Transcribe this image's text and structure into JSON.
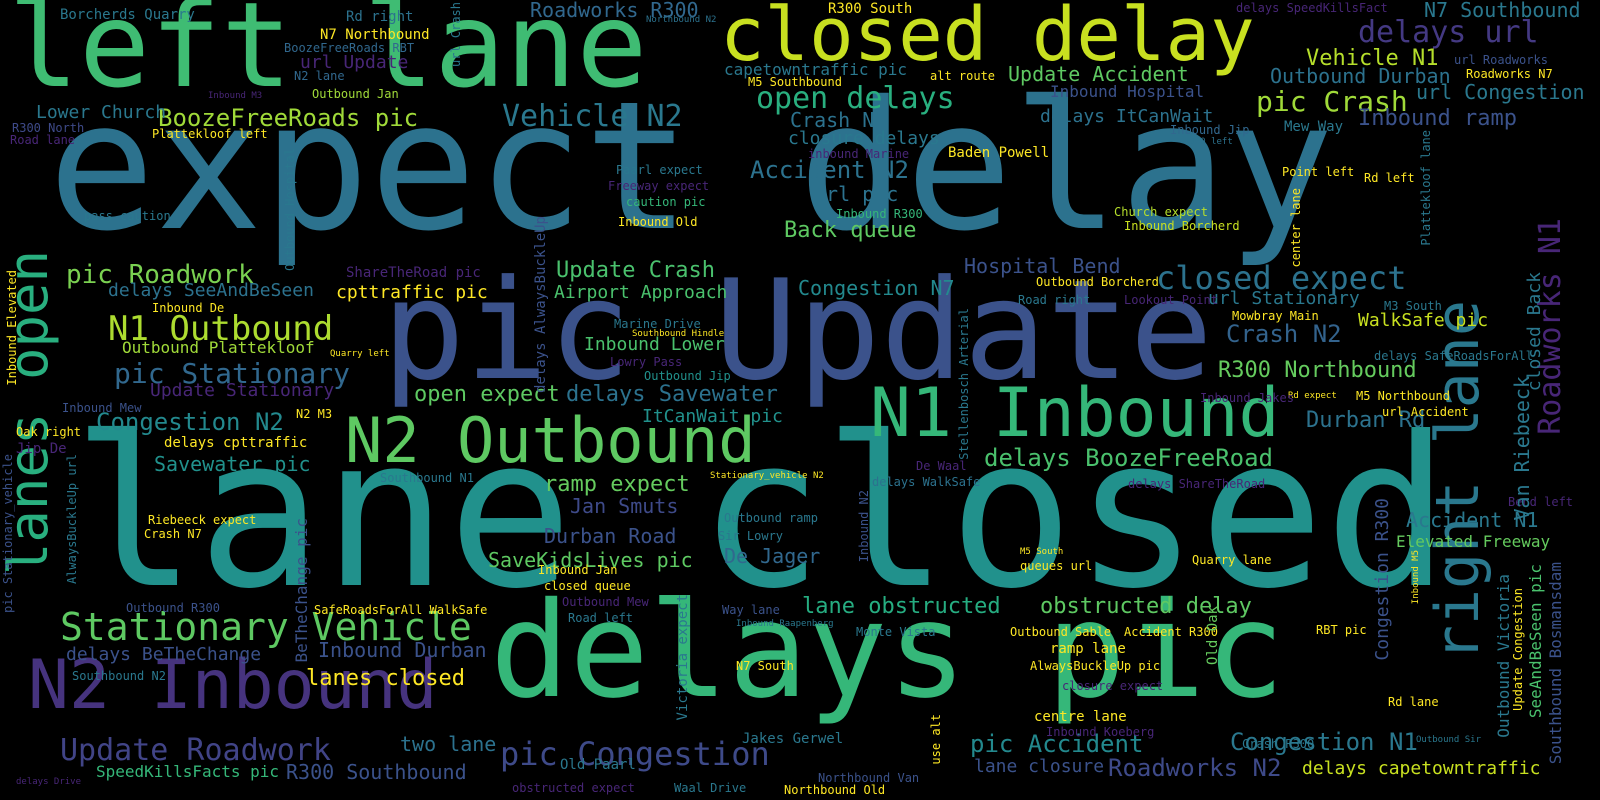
{
  "palette": {
    "background": "#000000",
    "colormap": "viridis"
  },
  "words": {
    "expect_delay": "expect delay",
    "lane_closed": "lane closed",
    "pic_update": "pic Update",
    "delays_pic": "delays pic",
    "left_lane": "left lane",
    "closed_delay": "closed delay",
    "n1_inbound": "N1 Inbound",
    "n2_outbound": "N2 Outbound",
    "n2_inbound": "N2 Inbound",
    "right_lane": "right lane",
    "lanes_open": "lanes open",
    "stationary_vehicle": "Stationary Vehicle",
    "n1_outbound": "N1 Outbound",
    "closed_expect": "closed expect",
    "roadworks_n1": "Roadworks N1",
    "pic_congestion": "pic Congestion",
    "update_roadwork": "Update Roadwork",
    "delays_url": "delays url",
    "open_delays": "open delays",
    "pic_crash": "pic Crash",
    "vehicle_n2": "Vehicle N2",
    "boozefreeroads_pic": "BoozeFreeRoads pic",
    "pic_roadwork": "pic Roadwork",
    "pic_stationary": "pic Stationary",
    "congestion_n2": "Congestion N2",
    "update_crash": "Update Crash",
    "accident_n2": "Accident N2",
    "back_queue": "Back queue",
    "delays_boozefreeroad": "delays BoozeFreeRoad",
    "r300_northbound": "R300 Northbound",
    "crash_n2": "Crash N2",
    "vehicle_n1": "Vehicle N1",
    "update_accident": "Update Accident",
    "outbound_durban": "Outbound Durban",
    "roadworks_r300": "Roadworks R300",
    "r300_south": "R300 South",
    "n7_southbound": "N7 Southbound",
    "url_congestion": "url Congestion",
    "inbound_ramp": "Inbound ramp",
    "congestion_n1": "Congestion N1",
    "roadworks_n2": "Roadworks N2",
    "pic_accident": "pic Accident",
    "lane_obstructed": "lane obstructed",
    "obstructed_delay": "obstructed delay",
    "delays_capetowntraffic": "delays capetowntraffic",
    "durban_rd": "Durban Rd",
    "accident_n1": "Accident N1",
    "elevated_freeway": "Elevated Freeway",
    "lanes_closed": "lanes closed",
    "two_lane": "two lane",
    "r300_southbound": "R300 Southbound",
    "speedkillsfacts_pic": "SpeedKillsFacts pic",
    "inbound_durban": "Inbound Durban",
    "delays_bethechange": "delays BeTheChange",
    "savewater_pic": "Savewater pic",
    "delays_savewater": "delays Savewater",
    "open_expect": "open expect",
    "ramp_expect": "ramp expect",
    "jan_smuts": "Jan Smuts",
    "durban_road": "Durban Road",
    "savekidslives_pic": "SaveKidsLives pic",
    "de_jager": "De Jager",
    "hospital_bend": "Hospital Bend",
    "congestion_n7": "Congestion N7",
    "airport_approach": "Airport Approach",
    "cpttraffic_pic": "cpttraffic pic",
    "delays_seeandbeseen": "delays SeeAndBeSeen",
    "walksafe_pic": "WalkSafe pic",
    "url_stationary": "url Stationary",
    "inbound_lower": "Inbound Lower",
    "itcanwait_pic": "ItCanWait pic",
    "update_stationary": "Update Stationary",
    "outbound_plattekloof": "Outbound Plattekloof",
    "url_pic": "url pic",
    "crash_n1": "Crash N1",
    "closure_delays": "closure delays",
    "url_update": "url Update",
    "lower_church": "Lower Church",
    "delays_itcanwait": "delays ItCanWait",
    "inbound_hospital": "Inbound Hospital",
    "borcherds_quarry": "Borcherds Quarry",
    "rd_right": "Rd right",
    "n7_northbound": "N7 Northbound",
    "boozefreeroads_rbt": "BoozeFreeRoads RBT",
    "n2_lane": "N2 lane",
    "outbound_jan": "Outbound Jan",
    "capetowntraffic_pic": "capetowntraffic pic",
    "m5_southbound": "M5 Southbound",
    "alt_route": "alt route",
    "northbound_n2": "Northbound N2",
    "delays_speedkillsfact": "delays SpeedKillsFact",
    "url_roadworks": "url Roadworks",
    "roadworks_n7": "Roadworks N7",
    "inbound_m3": "Inbound M3",
    "r300_north": "R300 North",
    "road_lane": "Road lane",
    "plattekloof_left": "Plattekloof left",
    "baden_powell": "Baden Powell",
    "inbound_jip": "Inbound Jip",
    "mew_way": "Mew Way",
    "r300_left": "R300 left",
    "inbound_marine": "inbound Marine",
    "paarl_expect": "Paarl expect",
    "freeway_expect": "Freeway expect",
    "caution_pic": "caution pic",
    "inbound_old": "Inbound Old",
    "inbound_r300": "Inbound R300",
    "church_expect": "Church expect",
    "inbound_borcherd": "Inbound Borcherd",
    "point_left": "Point left",
    "rd_left": "Rd left",
    "pass_caution": "pass caution",
    "sharetheroad_pic": "ShareTheRoad pic",
    "inbound_de": "Inbound De",
    "outbound_borcherd": "Outbound Borcherd",
    "road_right": "Road right",
    "lookout_point": "Lookout Point",
    "m3_south": "M3 South",
    "mowbray_main": "Mowbray Main",
    "marine_drive": "Marine Drive",
    "southbound_hindle": "Southbound Hindle",
    "quarry_left": "Quarry left",
    "lowry_pass": "Lowry Pass",
    "outbound_jip": "Outbound Jip",
    "delays_saferoadsforall": "delays SafeRoadsForAll",
    "rd_expect": "Rd expect",
    "inbound_jakes": "Inbound Jakes",
    "m5_northbound": "M5 Northbound",
    "url_accident": "url Accident",
    "inbound_mew": "Inbound Mew",
    "oak_right": "Oak right",
    "n2_m3": "N2 M3",
    "delays_cpttraffic": "delays cpttraffic",
    "jip_de": "Jip De",
    "de_waal": "De Waal",
    "delays_walksafe": "delays WalkSafe",
    "delays_sharetheroad": "delays ShareTheRoad",
    "southbound_n1": "Southbound N1",
    "stationary_vehicle_n2": "Stationary_vehicle N2",
    "riebeeck_expect": "Riebeeck expect",
    "crash_n7": "Crash N7",
    "outbound_ramp": "Outbound ramp",
    "sir_lowry": "Sir Lowry",
    "inbound_jan": "Inbound Jan",
    "closed_queue": "closed queue",
    "m5_south": "M5 South",
    "queues_url": "queues url",
    "quarry_lane": "Quarry lane",
    "bend_left": "Bend left",
    "outbound_r300": "Outbound R300",
    "saferoadsforall_walksafe": "SafeRoadsForAll WalkSafe",
    "outbound_mew": "Outbound Mew",
    "road_left": "Road left",
    "way_lane": "Way lane",
    "inbound_raapenberg": "Inbound Raapenberg",
    "monte_vista": "Monte Vista",
    "outbound_sable": "Outbound Sable",
    "accident_r300": "Accident R300",
    "rbt_pic": "RBT pic",
    "southbound_n2": "Southbound N2",
    "n7_south": "N7 South",
    "alwaysbuckleup_pic": "AlwaysBuckleUp pic",
    "closure_expect": "closure expect",
    "ramp_lane": "ramp lane",
    "centre_lane": "centre lane",
    "old_paarl": "Old Paarl",
    "jakes_gerwel": "Jakes Gerwel",
    "inbound_koeberg": "Inbound Koeberg",
    "rd_lane": "Rd lane",
    "crash_r300": "Crash R300",
    "outbound_sir": "Outbound Sir",
    "lane_closure": "lane closure",
    "northbound_van": "Northbound Van",
    "delays_drive": "delays Drive",
    "obstructed_expect": "obstructed expect",
    "waal_drive": "Waal Drive",
    "northbound_old": "Northbound Old",
    "inbound_elevated": "Inbound Elevated",
    "pic_stationary_vehicle": "pic Stationary_vehicle",
    "alwaysbuckleup_url": "AlwaysBuckleUp url",
    "outbound_hospital": "Outbound Hospital",
    "bethechange_pic": "BeTheChange pic",
    "delays_alwaysbuckleup": "delays AlwaysBuckleUp",
    "victoria_expect": "Victoria expect",
    "inbound_n2": "Inbound N2",
    "stellenbosch_arterial": "Stellenbosch Arterial",
    "old_oak": "Old Oak",
    "congestion_r300": "Congestion R300",
    "van_riebeeck": "Van Riebeeck",
    "closed_back": "closed Back",
    "center_lane": "center lane",
    "plattekloof_lane": "Plattekloof lane",
    "outbound_victoria": "Outbound Victoria",
    "update_congestion": "Update Congestion",
    "seeandbeseen_pic": "SeeAndBeSeen pic",
    "southbound_bosmansdam": "Southbound Bosmansdam",
    "inbound_m5": "Inbound M5",
    "url_crash": "url Crash",
    "use_alt": "use alt"
  }
}
